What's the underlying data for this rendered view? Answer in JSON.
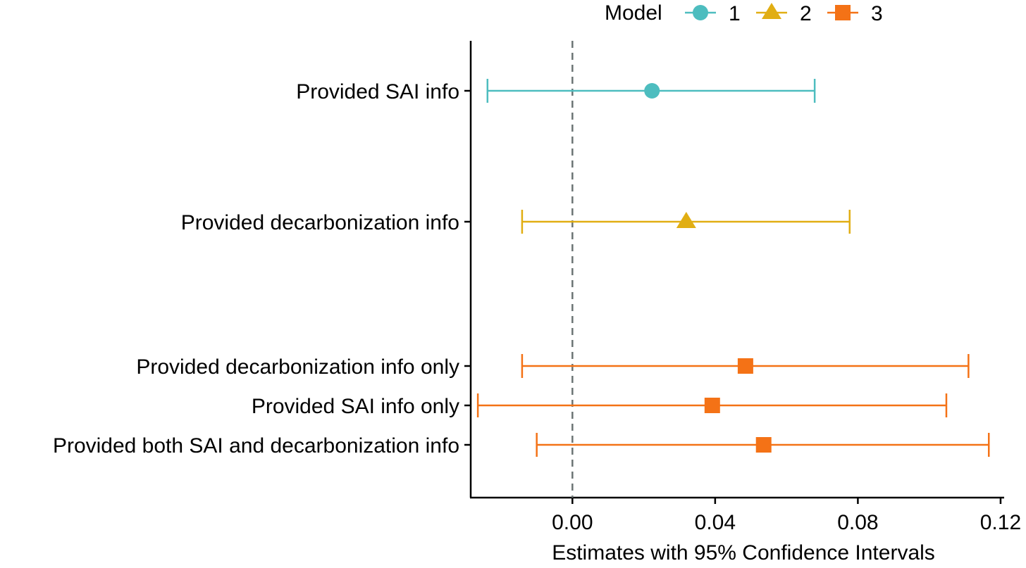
{
  "chart_data": {
    "type": "coefficient-plot",
    "title": "",
    "xlabel": "Estimates with 95% Confidence Intervals",
    "ylabel": "",
    "xlim": [
      -0.0285,
      0.121
    ],
    "xticks": [
      0.0,
      0.04,
      0.08,
      0.12
    ],
    "xtick_labels": [
      "0.00",
      "0.04",
      "0.08",
      "0.12"
    ],
    "reference_line": {
      "x": 0.0,
      "style": "dashed"
    },
    "grid": false,
    "legend": {
      "title": "Model",
      "position": "top",
      "entries": [
        {
          "label": "1",
          "shape": "circle",
          "color": "#4DBDBF"
        },
        {
          "label": "2",
          "shape": "triangle",
          "color": "#E1AE13"
        },
        {
          "label": "3",
          "shape": "square",
          "color": "#F47216"
        }
      ]
    },
    "rows": [
      {
        "label": "Provided SAI info",
        "model": "1",
        "estimate": 0.0223,
        "ci_low": -0.0238,
        "ci_high": 0.0679
      },
      {
        "label": "Provided decarbonization info",
        "model": "2",
        "estimate": 0.0319,
        "ci_low": -0.0141,
        "ci_high": 0.0777
      },
      {
        "label": "Provided decarbonization info only",
        "model": "3",
        "estimate": 0.0485,
        "ci_low": -0.0141,
        "ci_high": 0.111
      },
      {
        "label": "Provided SAI info only",
        "model": "3",
        "estimate": 0.0392,
        "ci_low": -0.0265,
        "ci_high": 0.1048
      },
      {
        "label": "Provided both SAI and decarbonization info",
        "model": "3",
        "estimate": 0.0536,
        "ci_low": -0.01,
        "ci_high": 0.1167
      }
    ]
  }
}
